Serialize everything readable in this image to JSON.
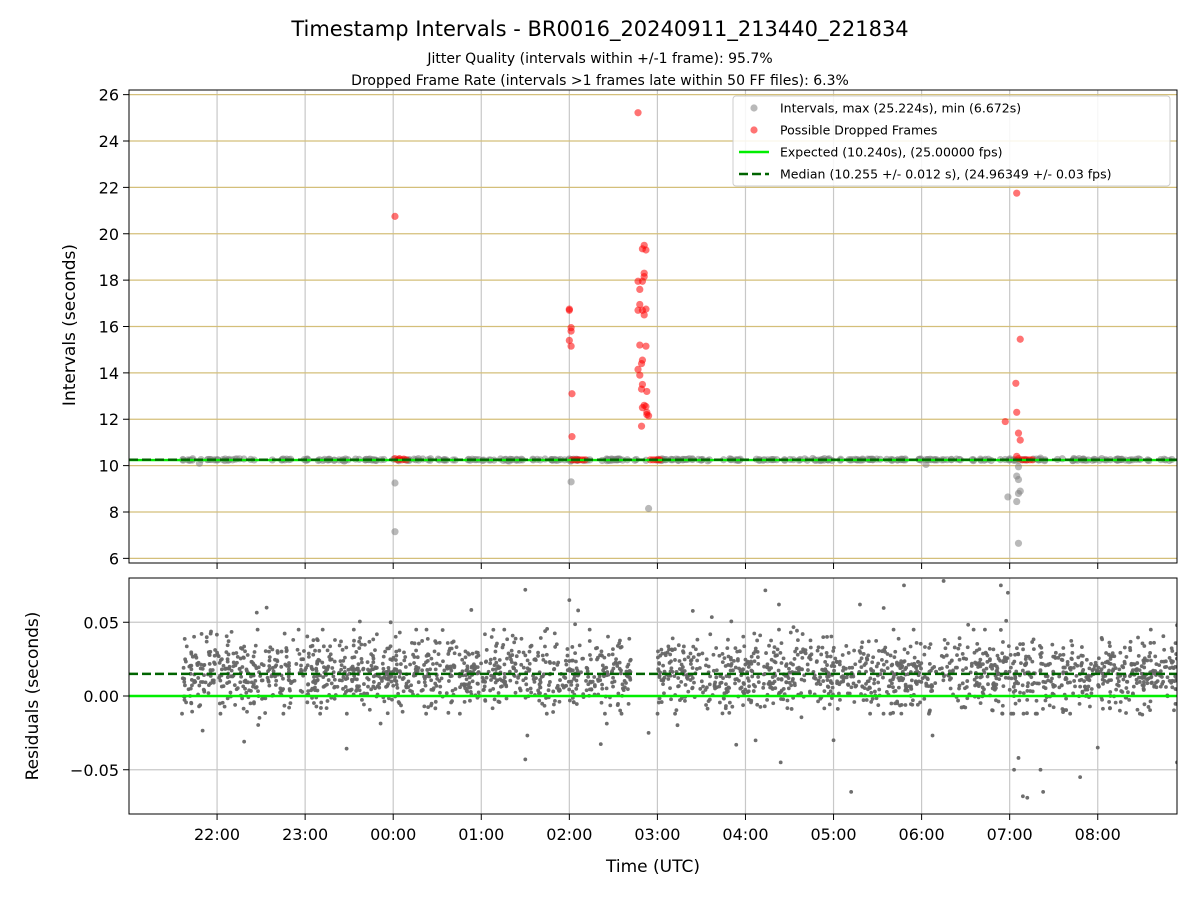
{
  "chart_data": {
    "type": "scatter",
    "title": "Timestamp Intervals - BR0016_20240911_213440_221834",
    "subtitle_lines": [
      "Jitter Quality (intervals within +/-1 frame): 95.7%",
      "Dropped Frame Rate (intervals >1 frames late within 50 FF files): 6.3%"
    ],
    "xlabel": "Time (UTC)",
    "x_axis_unit": "hours (UTC), 21:00 = 21, next-day hours continue past 24",
    "xlim": [
      21.0,
      32.9
    ],
    "x_ticks": [
      {
        "value": 22,
        "label": "22:00"
      },
      {
        "value": 23,
        "label": "23:00"
      },
      {
        "value": 24,
        "label": "00:00"
      },
      {
        "value": 25,
        "label": "01:00"
      },
      {
        "value": 26,
        "label": "02:00"
      },
      {
        "value": 27,
        "label": "03:00"
      },
      {
        "value": 28,
        "label": "04:00"
      },
      {
        "value": 29,
        "label": "05:00"
      },
      {
        "value": 30,
        "label": "06:00"
      },
      {
        "value": 31,
        "label": "07:00"
      },
      {
        "value": 32,
        "label": "08:00"
      }
    ],
    "panels": [
      {
        "name": "intervals",
        "ylabel": "Intervals (seconds)",
        "ylim": [
          5.8,
          26.2
        ],
        "y_ticks": [
          6,
          8,
          10,
          12,
          14,
          16,
          18,
          20,
          22,
          24,
          26
        ],
        "grid": true,
        "legend_position": "top-right",
        "series": [
          {
            "name": "Intervals, max (25.224s), min (6.672s)",
            "kind": "scatter",
            "color": "#808080",
            "x_range": [
              21.6,
              32.9
            ],
            "baseline": 10.255,
            "spread": 0.07,
            "count": 380,
            "outliers": [
              {
                "x": 24.02,
                "y": 9.25
              },
              {
                "x": 24.02,
                "y": 7.15
              },
              {
                "x": 26.02,
                "y": 9.3
              },
              {
                "x": 26.9,
                "y": 8.15
              },
              {
                "x": 30.98,
                "y": 8.65
              },
              {
                "x": 31.08,
                "y": 8.45
              },
              {
                "x": 31.1,
                "y": 8.8
              },
              {
                "x": 31.12,
                "y": 8.9
              },
              {
                "x": 31.1,
                "y": 9.4
              },
              {
                "x": 31.08,
                "y": 9.55
              },
              {
                "x": 31.1,
                "y": 6.65
              },
              {
                "x": 31.1,
                "y": 9.95
              },
              {
                "x": 21.8,
                "y": 10.1
              },
              {
                "x": 30.05,
                "y": 10.05
              }
            ]
          },
          {
            "name": "Possible Dropped Frames",
            "kind": "scatter",
            "color": "#ff0000",
            "points": [
              {
                "x": 24.02,
                "y": 20.75
              },
              {
                "x": 24.02,
                "y": 10.3
              },
              {
                "x": 24.05,
                "y": 10.25
              },
              {
                "x": 24.07,
                "y": 10.3
              },
              {
                "x": 24.1,
                "y": 10.25
              },
              {
                "x": 24.12,
                "y": 10.28
              },
              {
                "x": 24.15,
                "y": 10.25
              },
              {
                "x": 26.0,
                "y": 16.75
              },
              {
                "x": 26.0,
                "y": 16.7
              },
              {
                "x": 26.02,
                "y": 15.95
              },
              {
                "x": 26.02,
                "y": 15.8
              },
              {
                "x": 26.0,
                "y": 15.4
              },
              {
                "x": 26.02,
                "y": 15.15
              },
              {
                "x": 26.03,
                "y": 13.1
              },
              {
                "x": 26.03,
                "y": 11.25
              },
              {
                "x": 26.03,
                "y": 10.25
              },
              {
                "x": 26.06,
                "y": 10.25
              },
              {
                "x": 26.09,
                "y": 10.25
              },
              {
                "x": 26.12,
                "y": 10.25
              },
              {
                "x": 26.15,
                "y": 10.25
              },
              {
                "x": 26.18,
                "y": 10.25
              },
              {
                "x": 26.78,
                "y": 25.22
              },
              {
                "x": 26.85,
                "y": 19.5
              },
              {
                "x": 26.83,
                "y": 19.35
              },
              {
                "x": 26.87,
                "y": 19.3
              },
              {
                "x": 26.85,
                "y": 18.3
              },
              {
                "x": 26.85,
                "y": 18.15
              },
              {
                "x": 26.78,
                "y": 17.95
              },
              {
                "x": 26.83,
                "y": 17.95
              },
              {
                "x": 26.8,
                "y": 17.6
              },
              {
                "x": 26.8,
                "y": 16.95
              },
              {
                "x": 26.83,
                "y": 16.7
              },
              {
                "x": 26.87,
                "y": 16.75
              },
              {
                "x": 26.78,
                "y": 16.7
              },
              {
                "x": 26.85,
                "y": 16.5
              },
              {
                "x": 26.8,
                "y": 15.2
              },
              {
                "x": 26.87,
                "y": 15.15
              },
              {
                "x": 26.83,
                "y": 14.55
              },
              {
                "x": 26.82,
                "y": 14.4
              },
              {
                "x": 26.78,
                "y": 14.15
              },
              {
                "x": 26.8,
                "y": 13.9
              },
              {
                "x": 26.83,
                "y": 13.5
              },
              {
                "x": 26.82,
                "y": 13.3
              },
              {
                "x": 26.88,
                "y": 13.2
              },
              {
                "x": 26.85,
                "y": 12.6
              },
              {
                "x": 26.83,
                "y": 12.5
              },
              {
                "x": 26.87,
                "y": 12.55
              },
              {
                "x": 26.88,
                "y": 12.3
              },
              {
                "x": 26.9,
                "y": 12.15
              },
              {
                "x": 26.88,
                "y": 12.2
              },
              {
                "x": 26.82,
                "y": 11.7
              },
              {
                "x": 26.92,
                "y": 10.25
              },
              {
                "x": 26.95,
                "y": 10.25
              },
              {
                "x": 26.98,
                "y": 10.25
              },
              {
                "x": 27.01,
                "y": 10.25
              },
              {
                "x": 27.03,
                "y": 10.25
              },
              {
                "x": 30.95,
                "y": 11.9
              },
              {
                "x": 31.08,
                "y": 21.75
              },
              {
                "x": 31.12,
                "y": 15.45
              },
              {
                "x": 31.07,
                "y": 13.55
              },
              {
                "x": 31.08,
                "y": 12.3
              },
              {
                "x": 31.1,
                "y": 11.4
              },
              {
                "x": 31.12,
                "y": 11.1
              },
              {
                "x": 31.08,
                "y": 10.4
              },
              {
                "x": 31.1,
                "y": 10.3
              },
              {
                "x": 31.14,
                "y": 10.25
              },
              {
                "x": 31.17,
                "y": 10.25
              },
              {
                "x": 31.2,
                "y": 10.25
              },
              {
                "x": 31.23,
                "y": 10.25
              },
              {
                "x": 31.26,
                "y": 10.25
              }
            ]
          },
          {
            "name": "Expected (10.240s), (25.00000 fps)",
            "kind": "hline",
            "y": 10.24,
            "color": "#00ee00",
            "style": "solid"
          },
          {
            "name": "Median (10.255 +/- 0.012 s), (24.96349 +/- 0.03 fps)",
            "kind": "hline",
            "y": 10.255,
            "color": "#006400",
            "style": "dashed"
          }
        ]
      },
      {
        "name": "residuals",
        "ylabel": "Residuals (seconds)",
        "ylim": [
          -0.08,
          0.08
        ],
        "y_ticks": [
          -0.05,
          0.0,
          0.05
        ],
        "y_tick_labels": [
          "−0.05",
          "0.00",
          "0.05"
        ],
        "grid": true,
        "series": [
          {
            "name": "Residuals",
            "kind": "scatter",
            "color": "#666666",
            "x_range": [
              21.6,
              32.9
            ],
            "gap": [
              26.7,
              27.0
            ],
            "mean": 0.015,
            "spread": 0.012,
            "count": 2400,
            "outliers": [
              {
                "x": 25.5,
                "y": 0.072
              },
              {
                "x": 26.0,
                "y": 0.065
              },
              {
                "x": 26.1,
                "y": 0.058
              },
              {
                "x": 25.5,
                "y": -0.043
              },
              {
                "x": 26.9,
                "y": -0.025
              },
              {
                "x": 28.4,
                "y": -0.045
              },
              {
                "x": 29.0,
                "y": -0.03
              },
              {
                "x": 29.2,
                "y": -0.065
              },
              {
                "x": 29.8,
                "y": 0.075
              },
              {
                "x": 30.25,
                "y": 0.078
              },
              {
                "x": 30.9,
                "y": 0.075
              },
              {
                "x": 30.98,
                "y": 0.07
              },
              {
                "x": 31.05,
                "y": -0.05
              },
              {
                "x": 31.1,
                "y": -0.042
              },
              {
                "x": 31.15,
                "y": -0.068
              },
              {
                "x": 31.2,
                "y": -0.069
              },
              {
                "x": 31.38,
                "y": -0.065
              },
              {
                "x": 31.35,
                "y": -0.05
              },
              {
                "x": 31.8,
                "y": -0.055
              },
              {
                "x": 32.0,
                "y": -0.035
              },
              {
                "x": 32.9,
                "y": -0.045
              },
              {
                "x": 32.9,
                "y": 0.048
              },
              {
                "x": 28.38,
                "y": 0.062
              },
              {
                "x": 29.3,
                "y": 0.062
              }
            ]
          },
          {
            "name": "Expected",
            "kind": "hline",
            "y": 0.0,
            "color": "#00ee00",
            "style": "solid"
          },
          {
            "name": "Median",
            "kind": "hline",
            "y": 0.015,
            "color": "#006400",
            "style": "dashed"
          }
        ]
      }
    ]
  }
}
